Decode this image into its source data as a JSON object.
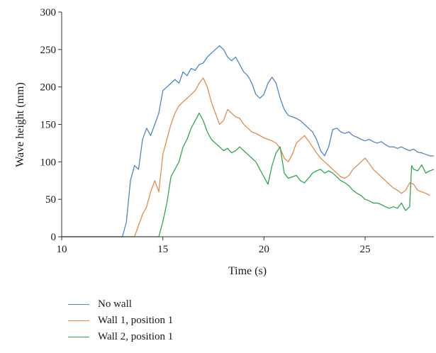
{
  "chart_data": {
    "type": "line",
    "xlabel": "Time (s)",
    "ylabel": "Wave height (mm)",
    "xlim": [
      10,
      28.4
    ],
    "ylim": [
      0,
      300
    ],
    "xticks": [
      10,
      15,
      20,
      25
    ],
    "yticks": [
      0,
      50,
      100,
      150,
      200,
      250,
      300
    ],
    "grid": false,
    "legend_position": "bottom-left",
    "series": [
      {
        "name": "No wall",
        "color": "#4f86c6",
        "x": [
          10,
          13.0,
          13.2,
          13.4,
          13.6,
          13.8,
          14.0,
          14.2,
          14.4,
          14.6,
          14.8,
          15.0,
          15.2,
          15.4,
          15.6,
          15.8,
          16.0,
          16.2,
          16.4,
          16.6,
          16.8,
          17.0,
          17.2,
          17.4,
          17.6,
          17.8,
          18.0,
          18.2,
          18.4,
          18.6,
          18.8,
          19.0,
          19.2,
          19.4,
          19.6,
          19.8,
          20.0,
          20.2,
          20.4,
          20.6,
          20.8,
          21.0,
          21.2,
          21.4,
          21.6,
          21.8,
          22.0,
          22.2,
          22.4,
          22.6,
          22.8,
          23.0,
          23.2,
          23.4,
          23.6,
          23.8,
          24.0,
          24.2,
          24.4,
          24.6,
          24.8,
          25.0,
          25.2,
          25.4,
          25.6,
          25.8,
          26.0,
          26.2,
          26.4,
          26.6,
          26.8,
          27.0,
          27.2,
          27.4,
          27.6,
          27.8,
          28.0,
          28.2,
          28.4
        ],
        "values": [
          0,
          0,
          20,
          75,
          95,
          90,
          130,
          145,
          135,
          150,
          165,
          195,
          200,
          205,
          210,
          205,
          220,
          215,
          225,
          222,
          230,
          232,
          240,
          245,
          250,
          255,
          250,
          240,
          235,
          240,
          230,
          220,
          215,
          205,
          190,
          185,
          190,
          205,
          213,
          205,
          185,
          170,
          162,
          160,
          158,
          155,
          150,
          145,
          140,
          130,
          115,
          108,
          120,
          143,
          145,
          140,
          138,
          140,
          135,
          133,
          130,
          128,
          130,
          127,
          125,
          127,
          123,
          120,
          120,
          118,
          120,
          117,
          115,
          117,
          113,
          112,
          110,
          108,
          108
        ]
      },
      {
        "name": "Wall 1, position 1",
        "color": "#e58a4e",
        "x": [
          10,
          13.6,
          13.8,
          14.0,
          14.2,
          14.4,
          14.6,
          14.8,
          15.0,
          15.2,
          15.4,
          15.6,
          15.8,
          16.0,
          16.2,
          16.4,
          16.6,
          16.8,
          17.0,
          17.2,
          17.4,
          17.6,
          17.8,
          18.0,
          18.2,
          18.4,
          18.6,
          18.8,
          19.0,
          19.2,
          19.4,
          19.6,
          19.8,
          20.0,
          20.2,
          20.4,
          20.6,
          20.8,
          21.0,
          21.2,
          21.4,
          21.6,
          21.8,
          22.0,
          22.2,
          22.4,
          22.6,
          22.8,
          23.0,
          23.2,
          23.4,
          23.6,
          23.8,
          24.0,
          24.2,
          24.4,
          24.6,
          24.8,
          25.0,
          25.2,
          25.4,
          25.6,
          25.8,
          26.0,
          26.2,
          26.4,
          26.6,
          26.8,
          27.0,
          27.2,
          27.4,
          27.6,
          27.8,
          28.0,
          28.2
        ],
        "values": [
          0,
          0,
          15,
          30,
          40,
          60,
          75,
          60,
          110,
          130,
          150,
          165,
          175,
          180,
          185,
          190,
          195,
          205,
          212,
          200,
          180,
          165,
          150,
          155,
          170,
          165,
          160,
          158,
          150,
          145,
          140,
          138,
          135,
          132,
          130,
          128,
          125,
          118,
          105,
          100,
          110,
          125,
          130,
          135,
          128,
          120,
          112,
          105,
          100,
          95,
          90,
          85,
          80,
          78,
          82,
          90,
          95,
          100,
          105,
          98,
          90,
          85,
          80,
          75,
          70,
          65,
          62,
          58,
          62,
          72,
          70,
          62,
          60,
          58,
          55
        ]
      },
      {
        "name": "Wall 2, position 1",
        "color": "#2ea84a",
        "x": [
          10,
          14.8,
          15.0,
          15.2,
          15.4,
          15.6,
          15.8,
          16.0,
          16.2,
          16.4,
          16.6,
          16.8,
          17.0,
          17.2,
          17.4,
          17.6,
          17.8,
          18.0,
          18.2,
          18.4,
          18.6,
          18.8,
          19.0,
          19.2,
          19.4,
          19.6,
          19.8,
          20.0,
          20.2,
          20.4,
          20.6,
          20.8,
          21.0,
          21.2,
          21.4,
          21.6,
          21.8,
          22.0,
          22.2,
          22.4,
          22.6,
          22.8,
          23.0,
          23.2,
          23.4,
          23.6,
          23.8,
          24.0,
          24.2,
          24.4,
          24.6,
          24.8,
          25.0,
          25.2,
          25.4,
          25.6,
          25.8,
          26.0,
          26.2,
          26.4,
          26.6,
          26.8,
          27.0,
          27.2,
          27.3,
          27.4,
          27.6,
          27.8,
          28.0,
          28.2,
          28.4
        ],
        "values": [
          0,
          0,
          20,
          45,
          80,
          90,
          100,
          120,
          130,
          145,
          155,
          165,
          155,
          140,
          130,
          125,
          120,
          115,
          118,
          112,
          115,
          120,
          115,
          110,
          105,
          100,
          90,
          80,
          70,
          95,
          112,
          120,
          85,
          78,
          80,
          82,
          75,
          72,
          78,
          85,
          88,
          90,
          85,
          88,
          85,
          80,
          75,
          72,
          68,
          62,
          58,
          55,
          50,
          48,
          45,
          45,
          43,
          40,
          38,
          40,
          38,
          45,
          35,
          40,
          95,
          90,
          88,
          96,
          85,
          88,
          90
        ]
      }
    ]
  }
}
